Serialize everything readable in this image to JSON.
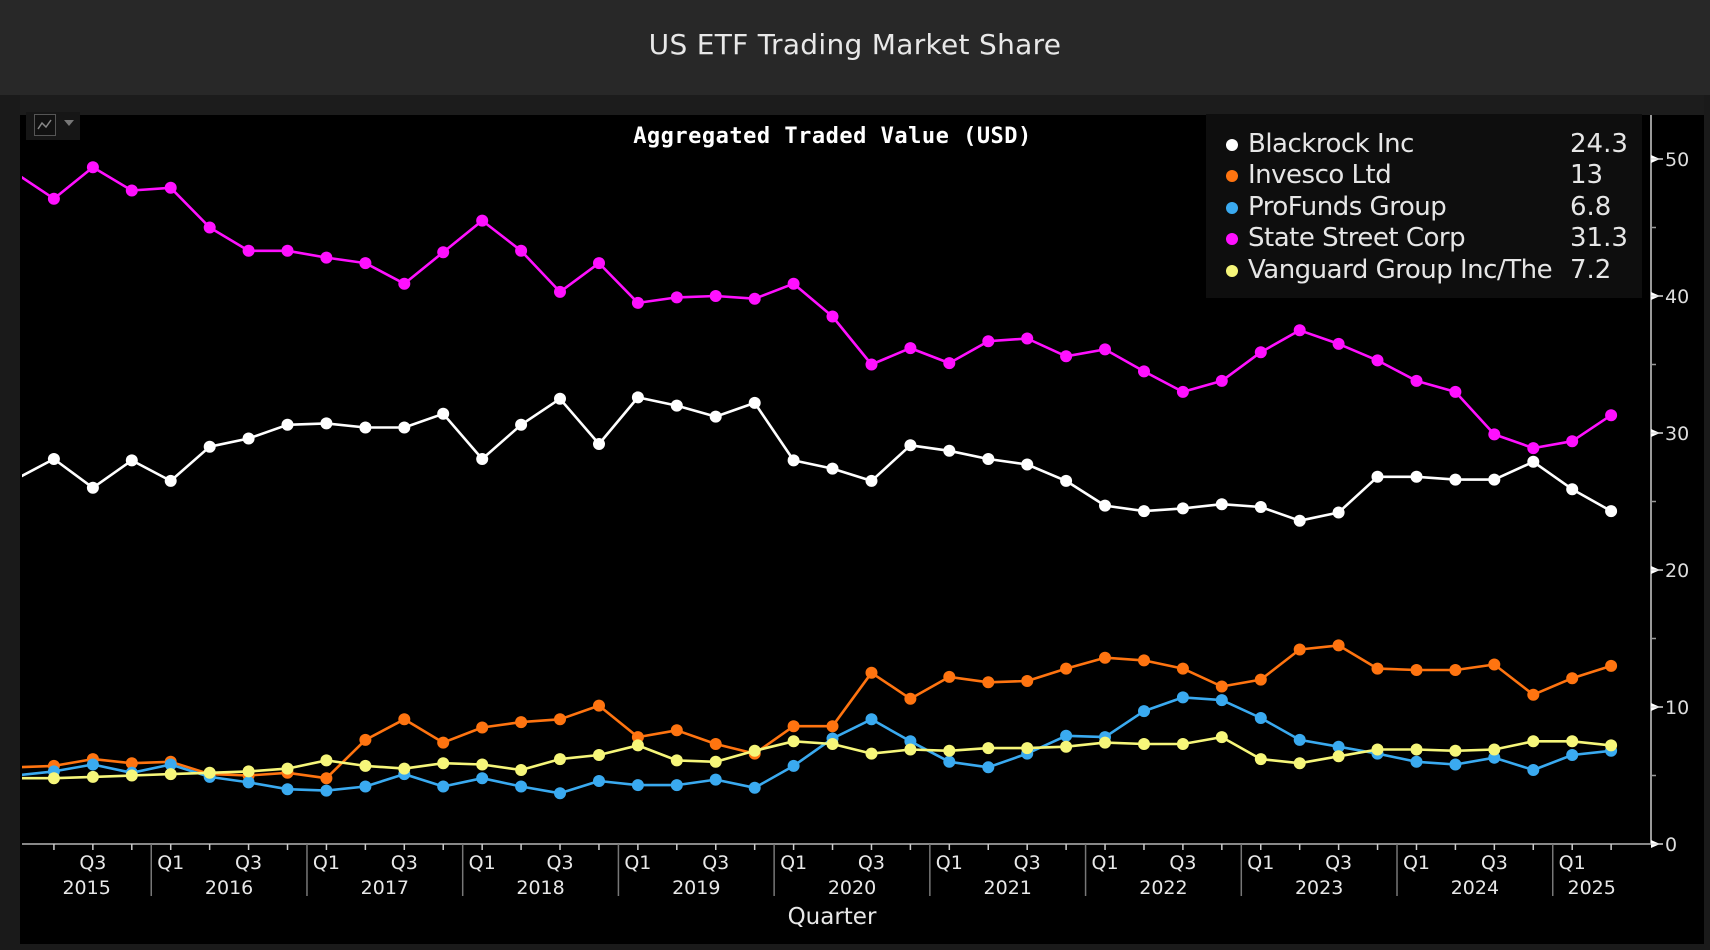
{
  "window": {
    "title": "US ETF Trading Market Share",
    "chart_type_icon": "line-chart-icon",
    "chart_type_caret": "caret-down-icon"
  },
  "chart_data": {
    "type": "line",
    "title": "Aggregated Traded Value (USD)",
    "xlabel": "Quarter",
    "ylabel": "",
    "ylim": [
      0,
      52
    ],
    "yticks": [
      0,
      10,
      20,
      30,
      40,
      50
    ],
    "y_axis_side": "right",
    "grid": false,
    "legend_position": "top-right",
    "x": [
      "2015 Q1",
      "2015 Q2",
      "2015 Q3",
      "2015 Q4",
      "2016 Q1",
      "2016 Q2",
      "2016 Q3",
      "2016 Q4",
      "2017 Q1",
      "2017 Q2",
      "2017 Q3",
      "2017 Q4",
      "2018 Q1",
      "2018 Q2",
      "2018 Q3",
      "2018 Q4",
      "2019 Q1",
      "2019 Q2",
      "2019 Q3",
      "2019 Q4",
      "2020 Q1",
      "2020 Q2",
      "2020 Q3",
      "2020 Q4",
      "2021 Q1",
      "2021 Q2",
      "2021 Q3",
      "2021 Q4",
      "2022 Q1",
      "2022 Q2",
      "2022 Q3",
      "2022 Q4",
      "2023 Q1",
      "2023 Q2",
      "2023 Q3",
      "2023 Q4",
      "2024 Q1",
      "2024 Q2",
      "2024 Q3",
      "2024 Q4",
      "2025 Q1",
      "2025 Q2"
    ],
    "x_tick_labels": [
      {
        "quarter": "2015 Q3",
        "label": "Q3"
      },
      {
        "quarter": "2016 Q1",
        "label": "Q1"
      },
      {
        "quarter": "2016 Q3",
        "label": "Q3"
      },
      {
        "quarter": "2017 Q1",
        "label": "Q1"
      },
      {
        "quarter": "2017 Q3",
        "label": "Q3"
      },
      {
        "quarter": "2018 Q1",
        "label": "Q1"
      },
      {
        "quarter": "2018 Q3",
        "label": "Q3"
      },
      {
        "quarter": "2019 Q1",
        "label": "Q1"
      },
      {
        "quarter": "2019 Q3",
        "label": "Q3"
      },
      {
        "quarter": "2020 Q1",
        "label": "Q1"
      },
      {
        "quarter": "2020 Q3",
        "label": "Q3"
      },
      {
        "quarter": "2021 Q1",
        "label": "Q1"
      },
      {
        "quarter": "2021 Q3",
        "label": "Q3"
      },
      {
        "quarter": "2022 Q1",
        "label": "Q1"
      },
      {
        "quarter": "2022 Q3",
        "label": "Q3"
      },
      {
        "quarter": "2023 Q1",
        "label": "Q1"
      },
      {
        "quarter": "2023 Q3",
        "label": "Q3"
      },
      {
        "quarter": "2024 Q1",
        "label": "Q1"
      },
      {
        "quarter": "2024 Q3",
        "label": "Q3"
      },
      {
        "quarter": "2025 Q1",
        "label": "Q1"
      }
    ],
    "year_labels": [
      "2015",
      "2016",
      "2017",
      "2018",
      "2019",
      "2020",
      "2021",
      "2022",
      "2023",
      "2024",
      "2025"
    ],
    "series": [
      {
        "name": "Blackrock Inc",
        "color": "#ffffff",
        "last_value": "24.3",
        "values": [
          26.6,
          28.1,
          26.0,
          28.0,
          26.5,
          29.0,
          29.6,
          30.6,
          30.7,
          30.4,
          30.4,
          31.4,
          28.1,
          30.6,
          32.5,
          29.2,
          32.6,
          32.0,
          31.2,
          32.2,
          28.0,
          27.4,
          26.5,
          29.1,
          28.7,
          28.1,
          27.7,
          26.5,
          24.7,
          24.3,
          24.5,
          24.8,
          24.6,
          23.6,
          24.2,
          26.8,
          26.8,
          26.6,
          26.6,
          27.9,
          25.9,
          24.3
        ]
      },
      {
        "name": "Invesco Ltd",
        "color": "#ff7410",
        "last_value": "13",
        "values": [
          5.6,
          5.7,
          6.2,
          5.9,
          6.0,
          5.1,
          5.0,
          5.2,
          4.8,
          7.6,
          9.1,
          7.4,
          8.5,
          8.9,
          9.1,
          10.1,
          7.8,
          8.3,
          7.3,
          6.6,
          8.6,
          8.6,
          12.5,
          10.6,
          12.2,
          11.8,
          11.9,
          12.8,
          13.6,
          13.4,
          12.8,
          11.5,
          12.0,
          14.2,
          14.5,
          12.8,
          12.7,
          12.7,
          13.1,
          10.9,
          12.1,
          13.0
        ]
      },
      {
        "name": "ProFunds Group",
        "color": "#3aaaf0",
        "last_value": "6.8",
        "values": [
          5.0,
          5.3,
          5.8,
          5.2,
          5.8,
          4.9,
          4.5,
          4.0,
          3.9,
          4.2,
          5.1,
          4.2,
          4.8,
          4.2,
          3.7,
          4.6,
          4.3,
          4.3,
          4.7,
          4.1,
          5.7,
          7.7,
          9.1,
          7.5,
          6.0,
          5.6,
          6.6,
          7.9,
          7.8,
          9.7,
          10.7,
          10.5,
          9.2,
          7.6,
          7.1,
          6.6,
          6.0,
          5.8,
          6.3,
          5.4,
          6.5,
          6.8
        ]
      },
      {
        "name": "State Street Corp",
        "color": "#ff10ff",
        "last_value": "31.3",
        "values": [
          49.0,
          47.1,
          49.4,
          47.7,
          47.9,
          45.0,
          43.3,
          43.3,
          42.8,
          42.4,
          40.9,
          43.2,
          45.5,
          43.3,
          40.3,
          42.4,
          39.5,
          39.9,
          40.0,
          39.8,
          40.9,
          38.5,
          35.0,
          36.2,
          35.1,
          36.7,
          36.9,
          35.6,
          36.1,
          34.5,
          33.0,
          33.8,
          35.9,
          37.5,
          36.5,
          35.3,
          33.8,
          33.0,
          29.9,
          28.9,
          29.4,
          31.3
        ]
      },
      {
        "name": "Vanguard Group Inc/The",
        "color": "#f6f67a",
        "last_value": "7.2",
        "values": [
          4.8,
          4.8,
          4.9,
          5.0,
          5.1,
          5.2,
          5.3,
          5.5,
          6.1,
          5.7,
          5.5,
          5.9,
          5.8,
          5.4,
          6.2,
          6.5,
          7.2,
          6.1,
          6.0,
          6.8,
          7.5,
          7.3,
          6.6,
          6.9,
          6.8,
          7.0,
          7.0,
          7.1,
          7.4,
          7.3,
          7.3,
          7.8,
          6.2,
          5.9,
          6.4,
          6.9,
          6.9,
          6.8,
          6.9,
          7.5,
          7.5,
          7.2
        ]
      }
    ]
  }
}
